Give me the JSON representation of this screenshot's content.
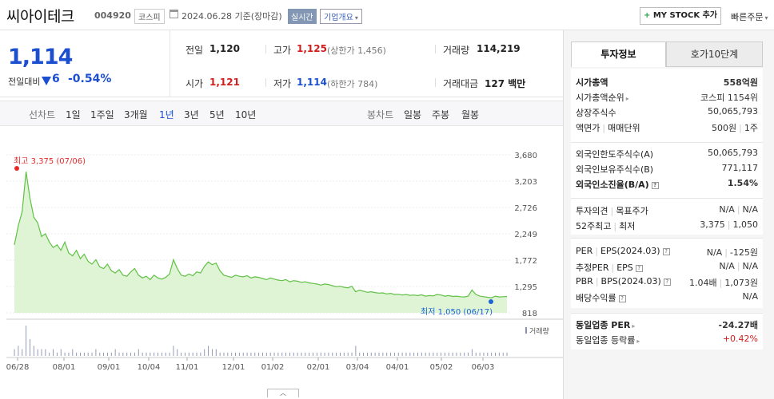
{
  "header": {
    "name": "씨아이테크",
    "code": "004920",
    "market": "코스피",
    "date": "2024.06.28 기준(장마감)",
    "realtime": "실시간",
    "corp_info": "기업개요",
    "mystock": "MY STOCK 추가",
    "quick_order": "빠른주문"
  },
  "price": {
    "current": "1,114",
    "vs_label": "전일대비",
    "change": "6",
    "change_pct": "-0.54%",
    "direction": "down"
  },
  "stats": {
    "prev_label": "전일",
    "prev": "1,120",
    "high_label": "고가",
    "high": "1,125",
    "upper_limit": "(상한가 1,456)",
    "volume_label": "거래량",
    "volume": "114,219",
    "open_label": "시가",
    "open": "1,121",
    "low_label": "저가",
    "low": "1,114",
    "lower_limit": "(하한가 784)",
    "amount_label": "거래대금",
    "amount": "127 백만"
  },
  "periods": {
    "line_label": "선차트",
    "line": [
      "1일",
      "1주일",
      "3개월",
      "1년",
      "3년",
      "5년",
      "10년"
    ],
    "selected": "1년",
    "candle_label": "봉차트",
    "candle": [
      "일봉",
      "주봉",
      "월봉"
    ]
  },
  "chart_data": {
    "type": "area",
    "y_ticks": [
      3680,
      3203,
      2726,
      2249,
      1772,
      1295,
      818
    ],
    "ylim": [
      818,
      3680
    ],
    "x_ticks": [
      "06/28",
      "08/01",
      "09/01",
      "10/04",
      "11/01",
      "12/01",
      "01/02",
      "02/01",
      "03/04",
      "04/01",
      "05/02",
      "06/03"
    ],
    "max_label": "최고 3,375 (07/06)",
    "min_label": "최저 1,050 (06/17)",
    "volume_label": "거래량",
    "series": [
      {
        "values": [
          2050,
          2400,
          2650,
          3375,
          2900,
          2550,
          2450,
          2200,
          2250,
          2100,
          2000,
          2050,
          1950,
          2100,
          1900,
          1850,
          1950,
          1800,
          1880,
          1750,
          1700,
          1780,
          1650,
          1620,
          1700,
          1580,
          1540,
          1600,
          1500,
          1480,
          1560,
          1620,
          1500,
          1450,
          1480,
          1420,
          1500,
          1450,
          1430,
          1460,
          1520,
          1780,
          1620,
          1500,
          1480,
          1520,
          1490,
          1560,
          1540,
          1660,
          1740,
          1690,
          1720,
          1580,
          1500,
          1480,
          1460,
          1500,
          1480,
          1470,
          1490,
          1450,
          1470,
          1460,
          1440,
          1420,
          1450,
          1430,
          1410,
          1400,
          1420,
          1380,
          1400,
          1390,
          1370,
          1380,
          1360,
          1350,
          1340,
          1320,
          1340,
          1330,
          1310,
          1290,
          1300,
          1280,
          1270,
          1300,
          1200,
          1230,
          1210,
          1190,
          1200,
          1185,
          1175,
          1180,
          1160,
          1170,
          1150,
          1155,
          1140,
          1150,
          1135,
          1140,
          1130,
          1145,
          1120,
          1130,
          1125,
          1150,
          1140,
          1120,
          1130,
          1115,
          1120,
          1110,
          1105,
          1120,
          1230,
          1150,
          1120,
          1110,
          1100,
          1090,
          1120,
          1105,
          1110,
          1114
        ]
      }
    ],
    "volume": [
      2,
      3,
      2,
      9,
      5,
      3,
      2,
      2,
      2,
      1,
      2,
      1,
      2,
      1,
      1,
      2,
      1,
      1,
      1,
      1,
      1,
      2,
      1,
      1,
      1,
      1,
      2,
      1,
      1,
      1,
      1,
      1,
      2,
      1,
      1,
      1,
      1,
      1,
      1,
      1,
      1,
      3,
      2,
      1,
      1,
      1,
      1,
      1,
      1,
      2,
      3,
      2,
      2,
      1,
      1,
      1,
      1,
      1,
      1,
      1,
      1,
      1,
      1,
      1,
      1,
      1,
      1,
      1,
      1,
      1,
      1,
      1,
      1,
      1,
      1,
      1,
      1,
      1,
      1,
      1,
      1,
      1,
      1,
      1,
      1,
      1,
      1,
      1,
      3,
      1,
      1,
      1,
      1,
      1,
      1,
      1,
      1,
      1,
      1,
      1,
      1,
      1,
      1,
      1,
      1,
      1,
      1,
      1,
      1,
      1,
      1,
      1,
      1,
      1,
      1,
      1,
      1,
      1,
      2,
      1,
      1,
      1,
      1,
      1,
      1,
      1,
      1,
      1
    ],
    "line_color": "#61c046",
    "fill_color": "#def4d4",
    "max_color": "#e32b2b",
    "min_color": "#1b63d8"
  },
  "panel": {
    "tab_invest": "투자정보",
    "tab_order": "호가10단계",
    "market_cap_label": "시가총액",
    "market_cap": "558억원",
    "rank_label": "시가총액순위",
    "rank": "코스피 1154위",
    "shares_label": "상장주식수",
    "shares": "50,065,793",
    "par_label": "액면가",
    "unit_label": "매매단위",
    "par": "500원",
    "unit": "1주",
    "foreign_limit_label": "외국인한도주식수(A)",
    "foreign_limit": "50,065,793",
    "foreign_hold_label": "외국인보유주식수(B)",
    "foreign_hold": "771,117",
    "foreign_ratio_label": "외국인소진율(B/A)",
    "foreign_ratio": "1.54%",
    "opinion_label": "투자의견",
    "target_label": "목표주가",
    "opinion": "N/A",
    "target": "N/A",
    "w52_high_label": "52주최고",
    "w52_low_label": "최저",
    "w52_high": "3,375",
    "w52_low": "1,050",
    "per_label": "PER",
    "eps_label": "EPS(2024.03)",
    "per": "N/A",
    "eps": "-125원",
    "est_per_label": "추정PER",
    "est_eps_label": "EPS",
    "est_per": "N/A",
    "est_eps": "N/A",
    "pbr_label": "PBR",
    "bps_label": "BPS(2024.03)",
    "pbr": "1.04배",
    "bps": "1,073원",
    "div_label": "배당수익률",
    "div": "N/A",
    "ind_per_label": "동일업종 PER",
    "ind_per": "-24.27배",
    "ind_chg_label": "동일업종 등락률",
    "ind_chg": "+0.42%"
  }
}
